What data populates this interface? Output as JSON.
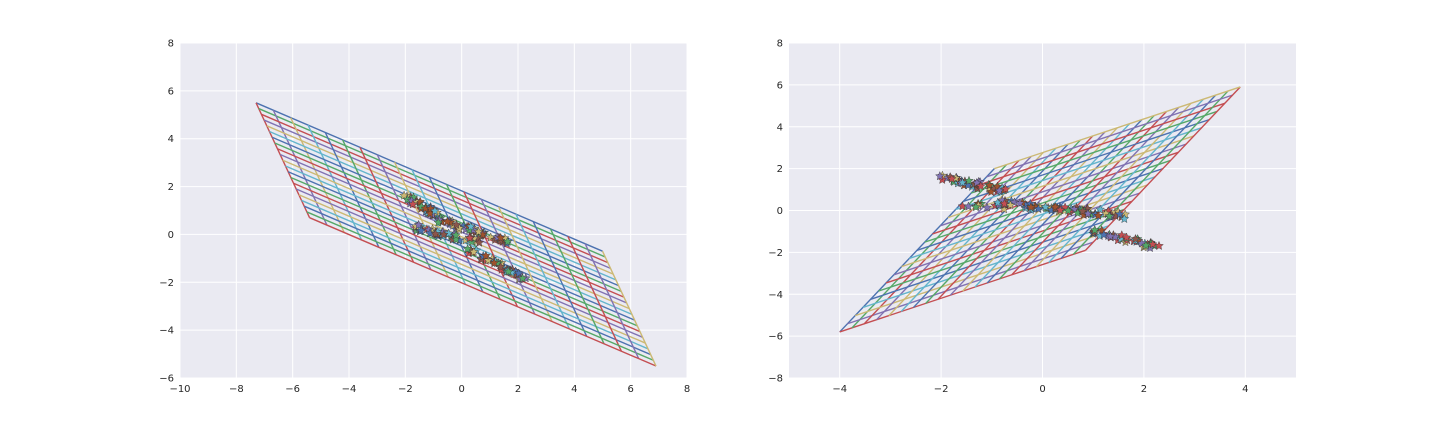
{
  "chart_data": [
    {
      "type": "line",
      "title": "",
      "xlabel": "",
      "ylabel": "",
      "xlim": [
        -10,
        8
      ],
      "ylim": [
        -6,
        8
      ],
      "xticks": [
        -10,
        -8,
        -6,
        -4,
        -2,
        0,
        2,
        4,
        6,
        8
      ],
      "xtick_labels": [
        "−10",
        "−8",
        "−6",
        "−4",
        "−2",
        "0",
        "2",
        "4",
        "6",
        "8"
      ],
      "yticks": [
        -6,
        -4,
        -2,
        0,
        2,
        4,
        6,
        8
      ],
      "ytick_labels": [
        "−6",
        "−4",
        "−2",
        "0",
        "2",
        "4",
        "6",
        "8"
      ],
      "grid": true,
      "background": "#eaeaf2",
      "palette": [
        "#4c72b0",
        "#55a868",
        "#c44e52",
        "#8172b2",
        "#ccb974",
        "#64b5cd"
      ],
      "mesh_corners": [
        [
          -7.3,
          5.5
        ],
        [
          5.0,
          -0.7
        ],
        [
          6.9,
          -5.5
        ],
        [
          -5.4,
          0.7
        ]
      ],
      "mesh_lines": 21,
      "star_clusters": [
        {
          "x": [
            -2.0,
            -0.3
          ],
          "y": [
            1.6,
            0.4
          ]
        },
        {
          "x": [
            -0.8,
            1.7
          ],
          "y": [
            0.6,
            -0.3
          ]
        },
        {
          "x": [
            -1.7,
            0.6
          ],
          "y": [
            0.3,
            -0.3
          ]
        },
        {
          "x": [
            0.2,
            2.2
          ],
          "y": [
            -0.6,
            -1.8
          ]
        }
      ]
    },
    {
      "type": "line",
      "title": "",
      "xlabel": "",
      "ylabel": "",
      "xlim": [
        -5,
        5
      ],
      "ylim": [
        -8,
        8
      ],
      "xticks": [
        -4,
        -2,
        0,
        2,
        4
      ],
      "xtick_labels": [
        "−4",
        "−2",
        "0",
        "2",
        "4"
      ],
      "yticks": [
        -8,
        -6,
        -4,
        -2,
        0,
        2,
        4,
        6,
        8
      ],
      "ytick_labels": [
        "−8",
        "−6",
        "−4",
        "−2",
        "0",
        "2",
        "4",
        "6",
        "8"
      ],
      "grid": true,
      "background": "#eaeaf2",
      "palette": [
        "#4c72b0",
        "#55a868",
        "#c44e52",
        "#8172b2",
        "#ccb974",
        "#64b5cd"
      ],
      "mesh_corners": [
        [
          -4.0,
          -5.8
        ],
        [
          -0.95,
          2.0
        ],
        [
          3.9,
          5.9
        ],
        [
          0.85,
          -1.9
        ]
      ],
      "mesh_lines": 21,
      "star_clusters": [
        {
          "x": [
            -2.0,
            -0.7
          ],
          "y": [
            1.6,
            0.9
          ]
        },
        {
          "x": [
            -1.6,
            1.5
          ],
          "y": [
            0.3,
            -0.1
          ]
        },
        {
          "x": [
            -0.8,
            1.6
          ],
          "y": [
            0.4,
            -0.3
          ]
        },
        {
          "x": [
            0.9,
            2.2
          ],
          "y": [
            -0.9,
            -1.7
          ]
        }
      ]
    }
  ]
}
